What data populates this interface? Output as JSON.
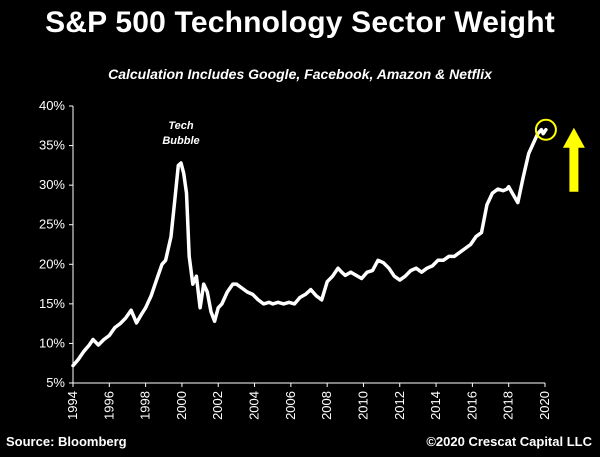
{
  "chart_data": {
    "type": "line",
    "title": "S&P 500 Technology Sector Weight",
    "subtitle": "Calculation Includes Google, Facebook, Amazon & Netflix",
    "xlabel": "",
    "ylabel": "",
    "x_ticks": [
      "1994",
      "1996",
      "1998",
      "2000",
      "2002",
      "2004",
      "2006",
      "2008",
      "2010",
      "2012",
      "2014",
      "2016",
      "2018",
      "2020"
    ],
    "y_ticks": [
      "5%",
      "10%",
      "15%",
      "20%",
      "25%",
      "30%",
      "35%",
      "40%"
    ],
    "xlim": [
      1994,
      2020
    ],
    "ylim": [
      5,
      40
    ],
    "grid": false,
    "line_color": "#ffffff",
    "highlight_color": "#ffff00",
    "annotation": [
      "Tech",
      "Bubble"
    ],
    "series": [
      {
        "x": [
          1994.0,
          1994.3,
          1994.6,
          1994.9,
          1995.1,
          1995.4,
          1995.7,
          1996.0,
          1996.3,
          1996.6,
          1996.9,
          1997.2,
          1997.5,
          1997.8,
          1998.0,
          1998.3,
          1998.6,
          1998.9,
          1999.1,
          1999.4,
          1999.6,
          1999.8,
          1999.95,
          2000.1,
          2000.25,
          2000.4,
          2000.6,
          2000.8,
          2001.0,
          2001.2,
          2001.4,
          2001.6,
          2001.8,
          2002.0,
          2002.2,
          2002.5,
          2002.8,
          2003.0,
          2003.3,
          2003.6,
          2003.9,
          2004.2,
          2004.5,
          2004.8,
          2005.0,
          2005.3,
          2005.6,
          2005.9,
          2006.2,
          2006.5,
          2006.8,
          2007.1,
          2007.4,
          2007.7,
          2008.0,
          2008.3,
          2008.6,
          2008.8,
          2009.0,
          2009.3,
          2009.6,
          2009.9,
          2010.2,
          2010.5,
          2010.8,
          2011.1,
          2011.4,
          2011.7,
          2012.0,
          2012.3,
          2012.6,
          2012.9,
          2013.2,
          2013.5,
          2013.8,
          2014.1,
          2014.4,
          2014.7,
          2015.0,
          2015.3,
          2015.6,
          2015.9,
          2016.2,
          2016.5,
          2016.8,
          2017.1,
          2017.4,
          2017.7,
          2017.9,
          2018.0,
          2018.2,
          2018.5,
          2018.8,
          2019.1,
          2019.4,
          2019.6,
          2019.8,
          2019.9,
          2020.05
        ],
        "y": [
          7.2,
          8.0,
          9.0,
          9.8,
          10.5,
          9.8,
          10.5,
          11.0,
          12.0,
          12.5,
          13.2,
          14.2,
          12.6,
          13.8,
          14.5,
          16.0,
          18.0,
          20.0,
          20.5,
          23.5,
          28.0,
          32.5,
          32.8,
          31.5,
          29.0,
          21.0,
          17.5,
          18.5,
          14.5,
          17.5,
          16.5,
          14.0,
          12.8,
          14.5,
          15.0,
          16.5,
          17.5,
          17.5,
          17.0,
          16.5,
          16.2,
          15.5,
          15.0,
          15.2,
          15.0,
          15.2,
          15.0,
          15.2,
          15.0,
          15.8,
          16.2,
          16.8,
          16.0,
          15.5,
          17.8,
          18.5,
          19.5,
          19.0,
          18.6,
          19.0,
          18.6,
          18.2,
          19.0,
          19.2,
          20.5,
          20.2,
          19.5,
          18.5,
          18.0,
          18.5,
          19.2,
          19.5,
          19.0,
          19.5,
          19.8,
          20.5,
          20.5,
          21.0,
          21.0,
          21.5,
          22.0,
          22.5,
          23.5,
          24.0,
          27.5,
          29.0,
          29.5,
          29.3,
          29.5,
          29.8,
          29.0,
          27.8,
          31.0,
          34.0,
          35.5,
          36.5,
          37.0,
          36.5,
          37.0
        ]
      }
    ]
  },
  "source": "Source: Bloomberg",
  "copyright": "©2020 Crescat Capital LLC"
}
